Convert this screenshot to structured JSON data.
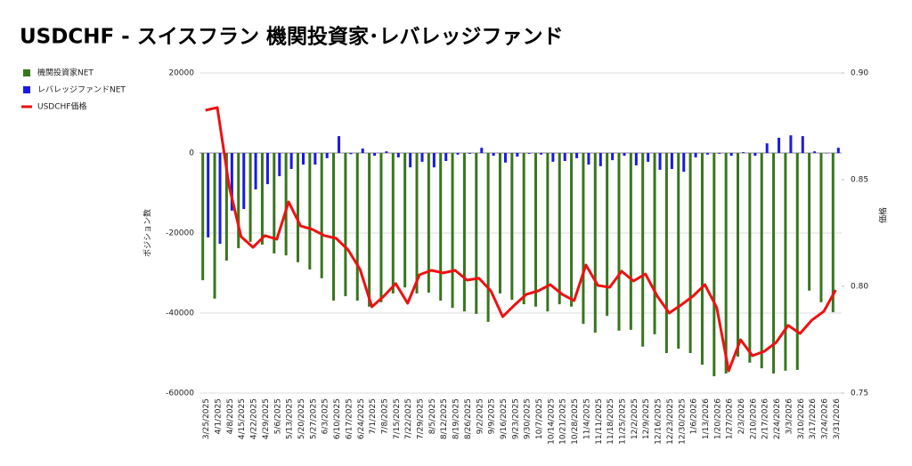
{
  "chart_data": {
    "type": "bar_line",
    "title": "USDCHF - スイスフラン 機関投資家･レバレッジファンド",
    "ylabel": "ポジション数",
    "y2label": "価格",
    "categories": [
      "3/25/2025",
      "4/1/2025",
      "4/8/2025",
      "4/15/2025",
      "4/22/2025",
      "4/29/2025",
      "5/6/2025",
      "5/13/2025",
      "5/20/2025",
      "5/27/2025",
      "6/3/2025",
      "6/10/2025",
      "6/17/2025",
      "6/24/2025",
      "7/1/2025",
      "7/8/2025",
      "7/15/2025",
      "7/22/2025",
      "7/29/2025",
      "8/5/2025",
      "8/12/2025",
      "8/19/2025",
      "8/26/2025",
      "9/2/2025",
      "9/9/2025",
      "9/16/2025",
      "9/23/2025",
      "9/30/2025",
      "10/7/2025",
      "10/14/2025",
      "10/21/2025",
      "10/28/2025",
      "11/4/2025",
      "11/11/2025",
      "11/18/2025",
      "11/25/2025",
      "12/2/2025",
      "12/9/2025",
      "12/16/2025",
      "12/23/2025",
      "12/30/2025",
      "1/6/2026",
      "1/13/2026",
      "1/20/2026",
      "1/27/2026",
      "2/3/2026",
      "2/10/2026",
      "2/17/2026",
      "2/24/2026",
      "3/3/2026",
      "3/10/2026",
      "3/17/2026",
      "3/24/2026",
      "3/31/2026"
    ],
    "series": [
      {
        "name": "機関投資家NET",
        "color": "#38761d",
        "kind": "bar",
        "values": [
          -31800,
          -36400,
          -26900,
          -23800,
          -22200,
          -22900,
          -25100,
          -25600,
          -27300,
          -29100,
          -31300,
          -36900,
          -35800,
          -36900,
          -38400,
          -37300,
          -35100,
          -33600,
          -35100,
          -34900,
          -36900,
          -38700,
          -39600,
          -40200,
          -42200,
          -35100,
          -36700,
          -37800,
          -38400,
          -39600,
          -37800,
          -38400,
          -42700,
          -44900,
          -40700,
          -44400,
          -44200,
          -48400,
          -45300,
          -50000,
          -48900,
          -50000,
          -52900,
          -55800,
          -55100,
          -50900,
          -52400,
          -53800,
          -55100,
          -54400,
          -54200,
          -34400,
          -37300,
          -39800
        ]
      },
      {
        "name": "レバレッジファンドNET",
        "color": "#1a1ae6",
        "kind": "bar",
        "values": [
          -21100,
          -22700,
          -14400,
          -14000,
          -9100,
          -7800,
          -5800,
          -4000,
          -2900,
          -2900,
          -1300,
          4200,
          -300,
          1100,
          -700,
          400,
          -1100,
          -3600,
          -2200,
          -3600,
          -2000,
          -400,
          -200,
          1300,
          -700,
          -2400,
          -900,
          -200,
          -400,
          -2200,
          -2000,
          -1300,
          -2900,
          -3300,
          -1800,
          -700,
          -3100,
          -2200,
          -4200,
          -4000,
          -4700,
          -1100,
          -400,
          -200,
          -700,
          200,
          -700,
          2400,
          3800,
          4400,
          4200,
          400,
          -100,
          1300
        ]
      },
      {
        "name": "USDCHF価格",
        "color": "#ee1111",
        "kind": "line",
        "axis": "y2",
        "values": [
          0.8825,
          0.8838,
          0.8467,
          0.8233,
          0.8183,
          0.8238,
          0.8221,
          0.8396,
          0.8283,
          0.8267,
          0.8238,
          0.8225,
          0.8171,
          0.8079,
          0.7904,
          0.7954,
          0.8013,
          0.7921,
          0.8054,
          0.8075,
          0.8063,
          0.8075,
          0.8029,
          0.8038,
          0.7979,
          0.7858,
          0.7913,
          0.7963,
          0.7979,
          0.8008,
          0.7963,
          0.7933,
          0.81,
          0.8004,
          0.7996,
          0.8071,
          0.8025,
          0.8058,
          0.7954,
          0.7875,
          0.7913,
          0.7954,
          0.8008,
          0.79,
          0.7604,
          0.775,
          0.7675,
          0.7696,
          0.7738,
          0.7817,
          0.7779,
          0.7842,
          0.7883,
          0.7983
        ]
      }
    ],
    "ylim": [
      -60000,
      20000
    ],
    "yticks": [
      20000,
      0,
      -20000,
      -40000,
      -60000
    ],
    "y2lim": [
      0.75,
      0.9
    ],
    "y2ticks": [
      {
        "value": 0.9,
        "label": "0.90"
      },
      {
        "value": 0.85,
        "label": "0.85"
      },
      {
        "value": 0.8,
        "label": "0.80"
      },
      {
        "value": 0.75,
        "label": "0.75"
      }
    ],
    "grid": true,
    "legend": "top-left"
  }
}
